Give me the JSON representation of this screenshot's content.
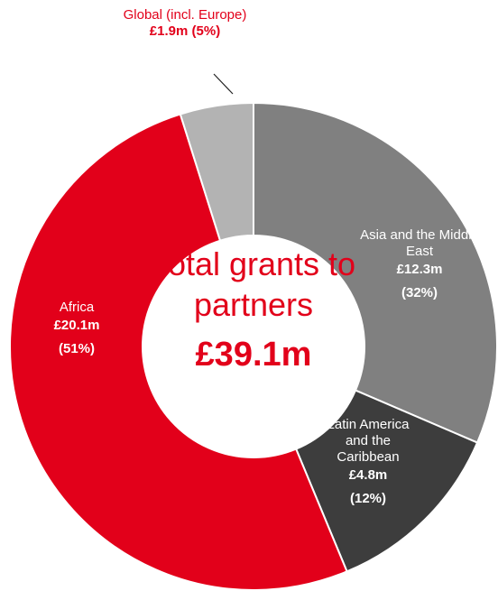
{
  "chart_data": {
    "type": "donut",
    "categories": [
      "Asia and the Middle East",
      "Latin America and the Caribbean",
      "Africa",
      "Global (incl. Europe)"
    ],
    "values": [
      12.3,
      4.8,
      20.1,
      1.9
    ],
    "value_labels": [
      "£12.3m",
      "£4.8m",
      "£20.1m",
      "£1.9m"
    ],
    "share_labels": [
      "(32%)",
      "(12%)",
      "(51%)",
      "(5%)"
    ],
    "colors": [
      "#808080",
      "#3d3d3d",
      "#e2001a",
      "#b3b3b3"
    ],
    "center_title": "Total grants to partners",
    "center_value": "£39.1m"
  }
}
